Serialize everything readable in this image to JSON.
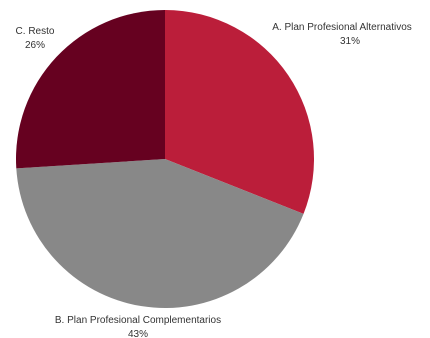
{
  "chart_data": {
    "type": "pie",
    "slices": [
      {
        "label": "A. Plan Profesional Alternativos",
        "value": 31,
        "value_label": "31%",
        "color": "#bb1e3a"
      },
      {
        "label": "B. Plan Profesional Complementarios",
        "value": 43,
        "value_label": "43%",
        "color": "#888888"
      },
      {
        "label": "C. Resto",
        "value": 26,
        "value_label": "26%",
        "color": "#660120"
      }
    ],
    "start_angle": "12 o'clock",
    "direction": "clockwise",
    "legend": "none",
    "labels": "outside"
  }
}
